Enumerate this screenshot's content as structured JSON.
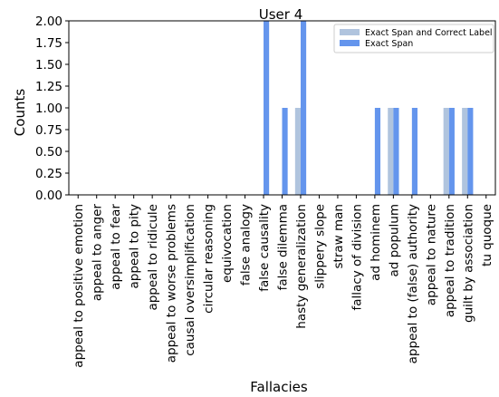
{
  "chart_data": {
    "type": "bar",
    "title": "User 4",
    "xlabel": "Fallacies",
    "ylabel": "Counts",
    "ylim": [
      0,
      2.0
    ],
    "yticks": [
      "0.00",
      "0.25",
      "0.50",
      "0.75",
      "1.00",
      "1.25",
      "1.50",
      "1.75",
      "2.00"
    ],
    "grid": false,
    "legend_placement": "top-right",
    "categories": [
      "appeal to positive emotion",
      "appeal to anger",
      "appeal to fear",
      "appeal to pity",
      "appeal to ridicule",
      "appeal to worse problems",
      "causal oversimplification",
      "circular reasoning",
      "equivocation",
      "false analogy",
      "false causality",
      "false dilemma",
      "hasty generalization",
      "slippery slope",
      "straw man",
      "fallacy of division",
      "ad hominem",
      "ad populum",
      "appeal to (false) authority",
      "appeal to nature",
      "appeal to tradition",
      "guilt by association",
      "tu quoque"
    ],
    "series": [
      {
        "name": "Exact Span and Correct Label",
        "color": "#b0c4de",
        "values": [
          0,
          0,
          0,
          0,
          0,
          0,
          0,
          0,
          0,
          0,
          0,
          0,
          1,
          0,
          0,
          0,
          0,
          1,
          0,
          0,
          1,
          1,
          0
        ]
      },
      {
        "name": "Exact Span",
        "color": "#6495ed",
        "values": [
          0,
          0,
          0,
          0,
          0,
          0,
          0,
          0,
          0,
          0,
          2,
          1,
          2,
          0,
          0,
          0,
          1,
          1,
          1,
          0,
          1,
          1,
          0
        ]
      }
    ]
  }
}
